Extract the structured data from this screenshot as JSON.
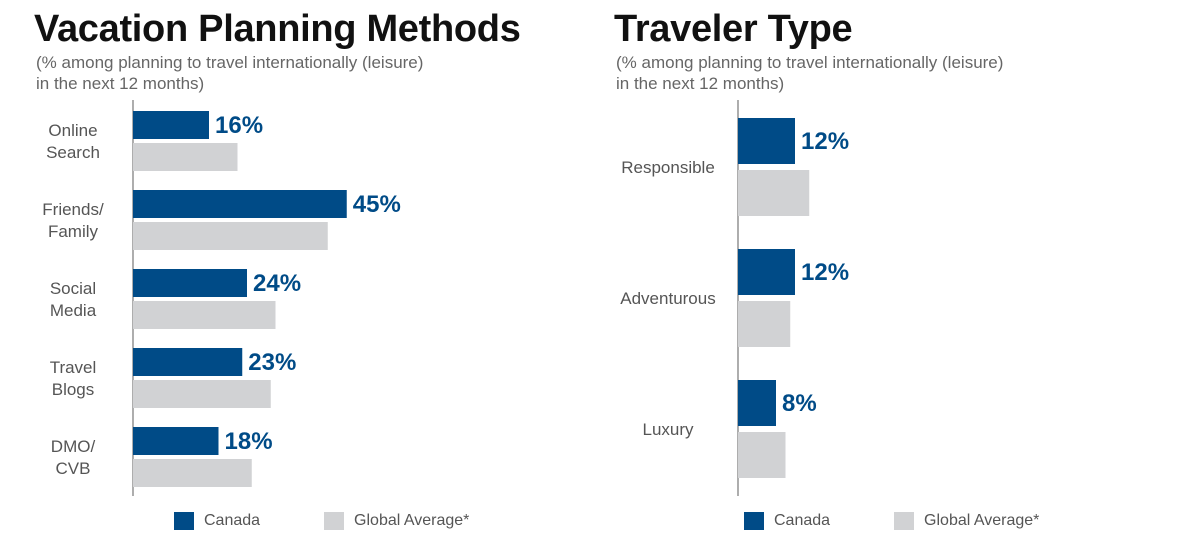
{
  "charts": [
    {
      "id": "left",
      "title": "Vacation Planning Methods",
      "subtitle_line1": "(% among planning to travel internationally (leisure)",
      "subtitle_line2": "in the next 12 months)"
    },
    {
      "id": "right",
      "title": "Traveler Type",
      "subtitle_line1": "(% among planning to travel internationally (leisure)",
      "subtitle_line2": "in the next 12 months)"
    }
  ],
  "legend": {
    "canada": "Canada",
    "global": "Global Average*"
  },
  "colors": {
    "canada": "#004b87",
    "global": "#d1d2d4",
    "axis": "#777777",
    "category_text": "#555555",
    "value_text": "#004b87"
  },
  "chart_data": [
    {
      "type": "bar",
      "orientation": "horizontal",
      "title": "Vacation Planning Methods",
      "categories": [
        [
          "Online",
          "Search"
        ],
        [
          "Friends/",
          "Family"
        ],
        [
          "Social",
          "Media"
        ],
        [
          "Travel",
          "Blogs"
        ],
        [
          "DMO/",
          "CVB"
        ]
      ],
      "series": [
        {
          "name": "Canada",
          "values": [
            16,
            45,
            24,
            23,
            18
          ],
          "labels": [
            "16%",
            "45%",
            "24%",
            "23%",
            "18%"
          ]
        },
        {
          "name": "Global Average*",
          "values": [
            22,
            41,
            30,
            29,
            25
          ]
        }
      ],
      "xlim": [
        0,
        100
      ],
      "grid": false,
      "legend_position": "bottom"
    },
    {
      "type": "bar",
      "orientation": "horizontal",
      "title": "Traveler Type",
      "categories": [
        [
          "Responsible"
        ],
        [
          "Adventurous"
        ],
        [
          "Luxury"
        ]
      ],
      "series": [
        {
          "name": "Canada",
          "values": [
            12,
            12,
            8
          ],
          "labels": [
            "12%",
            "12%",
            "8%"
          ]
        },
        {
          "name": "Global Average*",
          "values": [
            15,
            11,
            10
          ]
        }
      ],
      "xlim": [
        0,
        100
      ],
      "grid": false,
      "legend_position": "bottom"
    }
  ]
}
